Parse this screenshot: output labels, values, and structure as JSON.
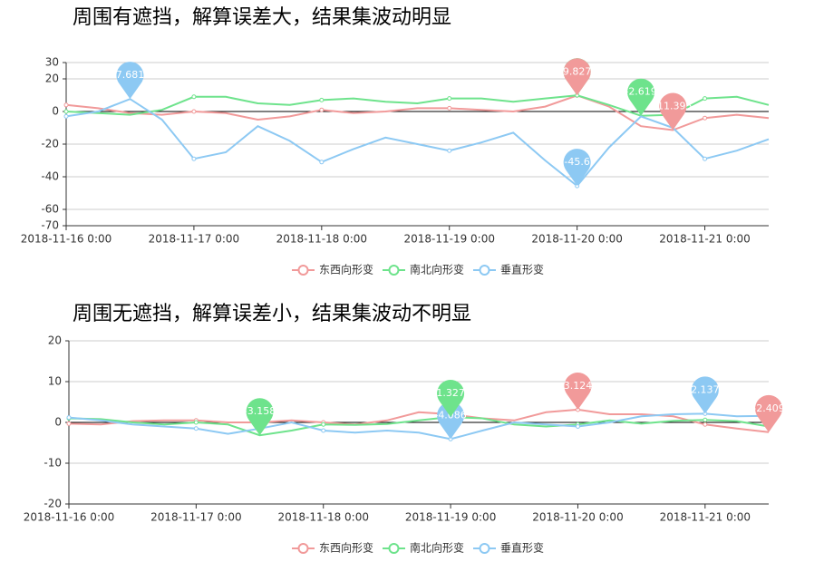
{
  "chart_data": [
    {
      "type": "line",
      "title": "周围有遮挡，解算误差大，结果集波动明显",
      "x": [
        "2018-11-16 0:00",
        "2018-11-16 6:00",
        "2018-11-16 12:00",
        "2018-11-16 18:00",
        "2018-11-17 0:00",
        "2018-11-17 6:00",
        "2018-11-17 12:00",
        "2018-11-17 18:00",
        "2018-11-18 0:00",
        "2018-11-18 6:00",
        "2018-11-18 12:00",
        "2018-11-18 18:00",
        "2018-11-19 0:00",
        "2018-11-19 6:00",
        "2018-11-19 12:00",
        "2018-11-19 18:00",
        "2018-11-20 0:00",
        "2018-11-20 6:00",
        "2018-11-20 12:00",
        "2018-11-20 18:00",
        "2018-11-21 0:00",
        "2018-11-21 6:00",
        "2018-11-21 12:00"
      ],
      "xlim": [
        "2018-11-16 0:00",
        "2018-11-21 12:00"
      ],
      "xticks": [
        "2018-11-16 0:00",
        "2018-11-17 0:00",
        "2018-11-18 0:00",
        "2018-11-19 0:00",
        "2018-11-20 0:00",
        "2018-11-21 0:00"
      ],
      "ylim": [
        -70,
        30
      ],
      "yticks": [
        -70,
        -60,
        -40,
        -20,
        0,
        20,
        30
      ],
      "grid": true,
      "series": [
        {
          "name": "东西向形变",
          "color": "#f19a9a",
          "values": [
            4,
            2,
            -1,
            -2,
            0,
            -1,
            -5,
            -3,
            1,
            -1,
            0,
            2,
            2,
            1,
            0,
            3,
            9.827,
            3,
            -9,
            -11.395,
            -4,
            -2,
            -4
          ]
        },
        {
          "name": "南北向形变",
          "color": "#6ee38c",
          "values": [
            0,
            -1,
            -2,
            1,
            9,
            9,
            5,
            4,
            7,
            8,
            6,
            5,
            8,
            8,
            6,
            8,
            9.9,
            4,
            -2.619,
            -2,
            8,
            9,
            4
          ]
        },
        {
          "name": "垂直形变",
          "color": "#8dc9f3",
          "values": [
            -3,
            0,
            7.681,
            -5,
            -29,
            -25,
            -9,
            -18,
            -31,
            -23,
            -16,
            -20,
            -24,
            -19,
            -13,
            -30,
            -45.6,
            -22,
            -3,
            -10,
            -29,
            -24,
            -17
          ]
        }
      ]
    },
    {
      "type": "line",
      "title": "周围无遮挡，解算误差小，结果集波动不明显",
      "x": [
        "2018-11-16 0:00",
        "2018-11-16 6:00",
        "2018-11-16 12:00",
        "2018-11-16 18:00",
        "2018-11-17 0:00",
        "2018-11-17 6:00",
        "2018-11-17 12:00",
        "2018-11-17 18:00",
        "2018-11-18 0:00",
        "2018-11-18 6:00",
        "2018-11-18 12:00",
        "2018-11-18 18:00",
        "2018-11-19 0:00",
        "2018-11-19 6:00",
        "2018-11-19 12:00",
        "2018-11-19 18:00",
        "2018-11-20 0:00",
        "2018-11-20 6:00",
        "2018-11-20 12:00",
        "2018-11-20 18:00",
        "2018-11-21 0:00",
        "2018-11-21 6:00",
        "2018-11-21 12:00"
      ],
      "xlim": [
        "2018-11-16 0:00",
        "2018-11-21 12:00"
      ],
      "xticks": [
        "2018-11-16 0:00",
        "2018-11-17 0:00",
        "2018-11-18 0:00",
        "2018-11-19 0:00",
        "2018-11-20 0:00",
        "2018-11-21 0:00"
      ],
      "ylim": [
        -20,
        20
      ],
      "yticks": [
        -20,
        -10,
        0,
        10,
        20
      ],
      "grid": true,
      "series": [
        {
          "name": "东西向形变",
          "color": "#f19a9a",
          "values": [
            -0.3,
            -0.5,
            0.3,
            0.5,
            0.5,
            0,
            0,
            0.5,
            0,
            -0.5,
            0.5,
            2.5,
            2,
            1,
            0.5,
            2.5,
            3.124,
            2,
            2,
            1.5,
            -0.5,
            -1.5,
            -2.409
          ]
        },
        {
          "name": "南北向形变",
          "color": "#6ee38c",
          "values": [
            1,
            0.8,
            0,
            -0.5,
            0,
            -0.5,
            -3.158,
            -2,
            -0.5,
            -0.6,
            -0.4,
            0.5,
            1.327,
            1,
            -0.5,
            -1,
            -0.5,
            0.5,
            -0.3,
            0.4,
            0.6,
            0.3,
            -1
          ]
        },
        {
          "name": "垂直形变",
          "color": "#8dc9f3",
          "values": [
            1.2,
            0.5,
            -0.5,
            -1,
            -1.5,
            -2.8,
            -1.5,
            0,
            -2,
            -2.5,
            -2,
            -2.5,
            -4.086,
            -2,
            0,
            -0.5,
            -1,
            0,
            1.5,
            2,
            2.137,
            1.5,
            1.6
          ]
        }
      ]
    }
  ]
}
